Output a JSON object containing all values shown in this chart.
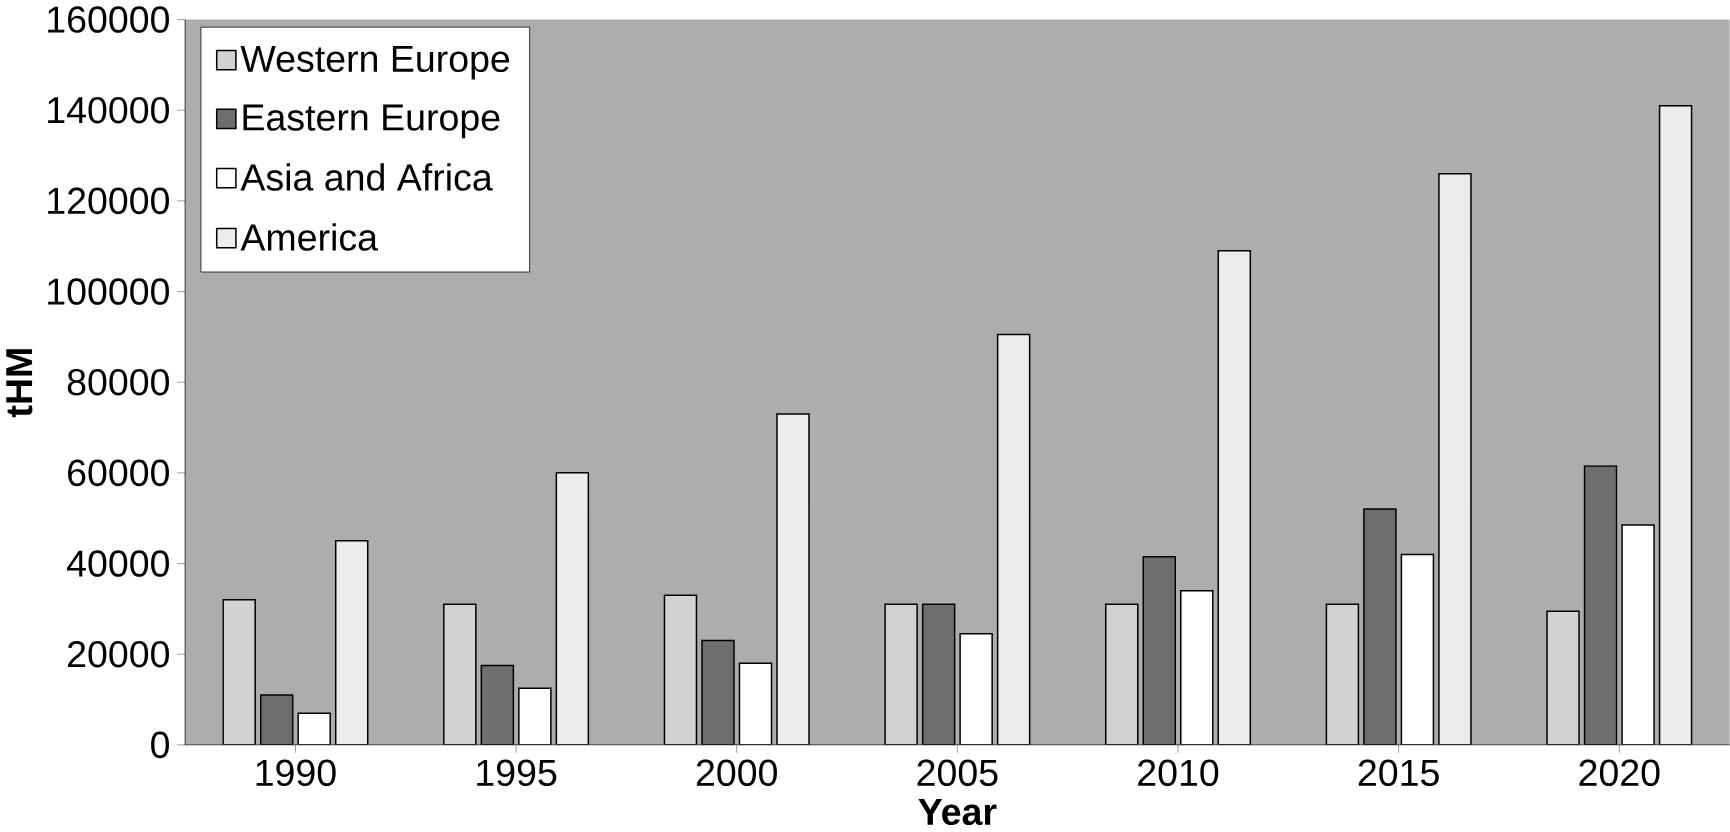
{
  "chart_data": {
    "type": "bar",
    "xlabel": "Year",
    "ylabel": "tHM",
    "categories": [
      "1990",
      "1995",
      "2000",
      "2005",
      "2010",
      "2015",
      "2020"
    ],
    "series": [
      {
        "name": "Western Europe",
        "color": "#d2d2d2",
        "values": [
          32000,
          31000,
          33000,
          31000,
          31000,
          31000,
          29500
        ]
      },
      {
        "name": "Eastern Europe",
        "color": "#6e6e6e",
        "values": [
          11000,
          17500,
          23000,
          31000,
          41500,
          52000,
          61500
        ]
      },
      {
        "name": "Asia and Africa",
        "color": "#ffffff",
        "values": [
          7000,
          12500,
          18000,
          24500,
          34000,
          42000,
          48500
        ]
      },
      {
        "name": "America",
        "color": "#ececec",
        "values": [
          45000,
          60000,
          73000,
          90500,
          109000,
          126000,
          141000
        ]
      }
    ],
    "ylim": [
      0,
      160000
    ],
    "yticks": [
      0,
      20000,
      40000,
      60000,
      80000,
      100000,
      120000,
      140000,
      160000
    ],
    "grid": false,
    "legend": "top left"
  }
}
